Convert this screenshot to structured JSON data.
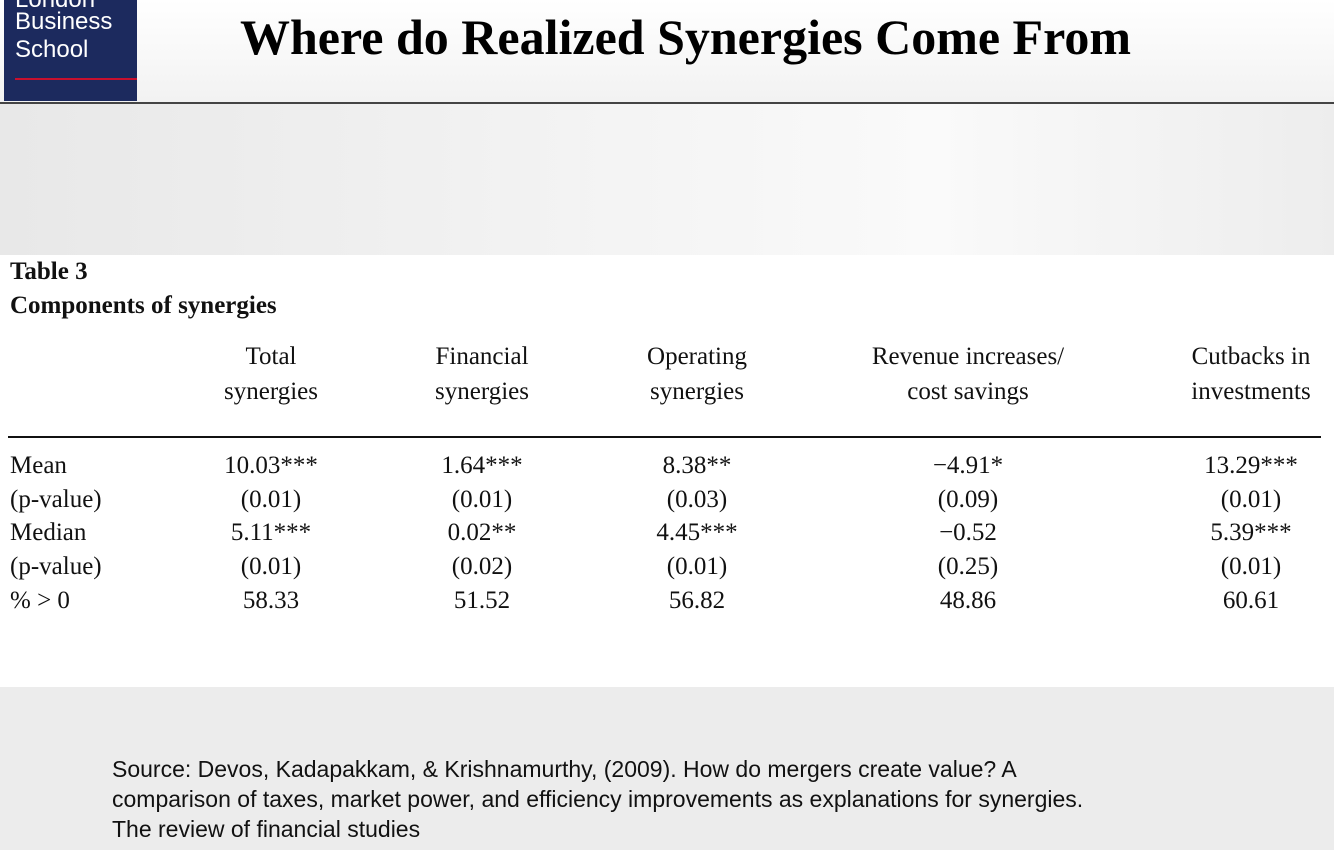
{
  "logo": {
    "lines": [
      "London",
      "Business",
      "School"
    ]
  },
  "header": {
    "title": "Where do Realized Synergies Come From"
  },
  "table": {
    "number": "Table 3",
    "caption": "Components of synergies",
    "columns": [
      [
        "Total",
        "synergies"
      ],
      [
        "Financial",
        "synergies"
      ],
      [
        "Operating",
        "synergies"
      ],
      [
        "Revenue increases/",
        "cost savings"
      ],
      [
        "Cutbacks in",
        "investments"
      ]
    ],
    "rows": [
      [
        "Mean",
        "10.03***",
        "1.64***",
        "8.38**",
        "−4.91*",
        "13.29***"
      ],
      [
        "(p-value)",
        "(0.01)",
        "(0.01)",
        "(0.03)",
        "(0.09)",
        "(0.01)"
      ],
      [
        "Median",
        "5.11***",
        "0.02**",
        "4.45***",
        "−0.52",
        "5.39***"
      ],
      [
        "(p-value)",
        "(0.01)",
        "(0.02)",
        "(0.01)",
        "(0.25)",
        "(0.01)"
      ],
      [
        "% > 0",
        "58.33",
        "51.52",
        "56.82",
        "48.86",
        "60.61"
      ]
    ]
  },
  "source": {
    "lines": [
      "Source: Devos, Kadapakkam, & Krishnamurthy, (2009). How do mergers create value? A",
      "comparison of taxes, market power, and efficiency improvements as explanations for synergies.",
      "The review of financial studies"
    ]
  }
}
